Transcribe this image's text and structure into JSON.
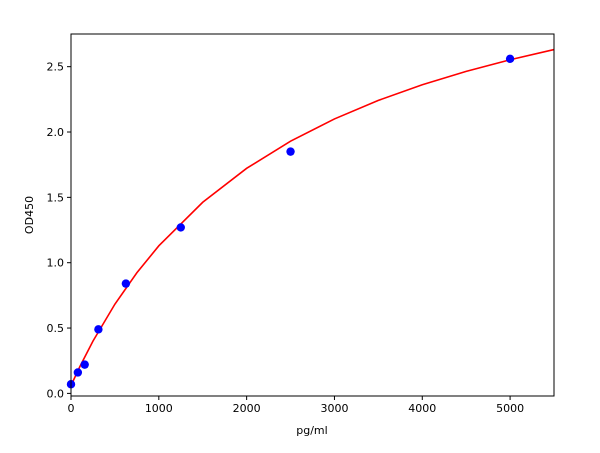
{
  "chart_data": {
    "type": "scatter",
    "title": "",
    "xlabel": "pg/ml",
    "ylabel": "OD450",
    "xlim": [
      0,
      5500
    ],
    "ylim": [
      -0.02,
      2.75
    ],
    "xticks": [
      0,
      1000,
      2000,
      3000,
      4000,
      5000
    ],
    "xtick_labels": [
      "0",
      "1000",
      "2000",
      "3000",
      "4000",
      "5000"
    ],
    "yticks": [
      0.0,
      0.5,
      1.0,
      1.5,
      2.0,
      2.5
    ],
    "ytick_labels": [
      "0.0",
      "0.5",
      "1.0",
      "1.5",
      "2.0",
      "2.5"
    ],
    "grid": false,
    "series": [
      {
        "kind": "points",
        "color": "#0000ff",
        "x": [
          0,
          78,
          156,
          312,
          625,
          1250,
          2500,
          5000
        ],
        "y": [
          0.07,
          0.16,
          0.22,
          0.49,
          0.84,
          1.27,
          1.85,
          2.56
        ]
      },
      {
        "kind": "fit-curve",
        "color": "#ff0000",
        "x": [
          0,
          100,
          250,
          500,
          750,
          1000,
          1500,
          2000,
          2500,
          3000,
          3500,
          4000,
          4500,
          5000,
          5500
        ],
        "y": [
          0.06,
          0.204,
          0.4,
          0.683,
          0.923,
          1.129,
          1.4625,
          1.722,
          1.93,
          2.1,
          2.242,
          2.362,
          2.464,
          2.553,
          2.631
        ]
      }
    ]
  }
}
